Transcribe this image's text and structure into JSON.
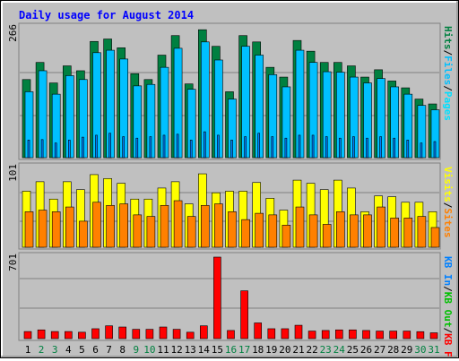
{
  "title": "Daily usage for August 2014",
  "colors": {
    "title": "#0000ff",
    "hits": "#008040",
    "files": "#00c0ff",
    "pages": "#00e0ff",
    "sites": "#ff8000",
    "visits": "#ffff00",
    "kb_in": "#0080ff",
    "kb_out": "#00c000",
    "kb_f": "#ff0000",
    "weekend": "#008040",
    "weekday": "#000000"
  },
  "chart_data": [
    {
      "type": "bar",
      "name": "Hits/Files/Pages",
      "legend": [
        "Hits",
        "/",
        "Files",
        "/",
        "Pages"
      ],
      "ymax_label": "266",
      "ymax": 266,
      "categories": [
        "1",
        "2",
        "3",
        "4",
        "5",
        "6",
        "7",
        "8",
        "9",
        "10",
        "11",
        "12",
        "13",
        "14",
        "15",
        "16",
        "17",
        "18",
        "19",
        "20",
        "21",
        "22",
        "23",
        "24",
        "25",
        "26",
        "27",
        "28",
        "29",
        "30",
        "31"
      ],
      "series": [
        {
          "name": "Hits",
          "values": [
            160,
            195,
            153,
            188,
            178,
            238,
            243,
            225,
            172,
            160,
            210,
            250,
            151,
            262,
            228,
            135,
            250,
            237,
            185,
            165,
            240,
            218,
            195,
            195,
            188,
            165,
            180,
            157,
            143,
            120,
            110
          ]
        },
        {
          "name": "Files",
          "values": [
            135,
            178,
            130,
            168,
            160,
            215,
            220,
            202,
            147,
            150,
            185,
            224,
            140,
            237,
            200,
            120,
            228,
            210,
            170,
            145,
            220,
            195,
            176,
            175,
            165,
            153,
            162,
            145,
            130,
            107,
            98
          ]
        },
        {
          "name": "Pages",
          "values": [
            36,
            37,
            30,
            36,
            42,
            46,
            50,
            43,
            40,
            43,
            46,
            48,
            36,
            53,
            46,
            36,
            43,
            50,
            43,
            40,
            46,
            46,
            43,
            40,
            43,
            40,
            43,
            40,
            36,
            30,
            33
          ]
        }
      ]
    },
    {
      "type": "bar",
      "name": "Visits/Sites",
      "legend": [
        "Visits",
        "/",
        "Sites"
      ],
      "ymax_label": "101",
      "ymax": 101,
      "categories": [
        "1",
        "2",
        "3",
        "4",
        "5",
        "6",
        "7",
        "8",
        "9",
        "10",
        "11",
        "12",
        "13",
        "14",
        "15",
        "16",
        "17",
        "18",
        "19",
        "20",
        "21",
        "22",
        "23",
        "24",
        "25",
        "26",
        "27",
        "28",
        "29",
        "30",
        "31"
      ],
      "series": [
        {
          "name": "Visits",
          "values": [
            71,
            83,
            61,
            83,
            73,
            92,
            87,
            81,
            61,
            61,
            75,
            83,
            55,
            93,
            69,
            71,
            71,
            82,
            62,
            47,
            85,
            81,
            73,
            85,
            75,
            45,
            65,
            64,
            57,
            57,
            45
          ]
        },
        {
          "name": "Sites",
          "values": [
            45,
            47,
            45,
            51,
            33,
            57,
            53,
            55,
            41,
            39,
            53,
            59,
            39,
            53,
            55,
            45,
            35,
            43,
            41,
            28,
            51,
            41,
            29,
            45,
            41,
            41,
            51,
            37,
            37,
            39,
            25
          ]
        }
      ]
    },
    {
      "type": "bar",
      "name": "KB F/KB Out/KB In",
      "legend": [
        "KB F",
        "/",
        "KB Out",
        "/",
        "KB In"
      ],
      "ymax_label": "701",
      "ymax": 701,
      "categories": [
        "1",
        "2",
        "3",
        "4",
        "5",
        "6",
        "7",
        "8",
        "9",
        "10",
        "11",
        "12",
        "13",
        "14",
        "15",
        "16",
        "17",
        "18",
        "19",
        "20",
        "21",
        "22",
        "23",
        "24",
        "25",
        "26",
        "27",
        "28",
        "29",
        "30",
        "31"
      ],
      "series": [
        {
          "name": "KB F",
          "values": [
            61,
            75,
            61,
            61,
            55,
            85,
            110,
            100,
            80,
            80,
            100,
            80,
            55,
            110,
            701,
            70,
            411,
            135,
            85,
            85,
            115,
            65,
            70,
            75,
            75,
            70,
            65,
            65,
            65,
            60,
            50
          ]
        }
      ]
    }
  ],
  "days": [
    "1",
    "2",
    "3",
    "4",
    "5",
    "6",
    "7",
    "8",
    "9",
    "10",
    "11",
    "12",
    "13",
    "14",
    "15",
    "16",
    "17",
    "18",
    "19",
    "20",
    "21",
    "22",
    "23",
    "24",
    "25",
    "26",
    "27",
    "28",
    "29",
    "30",
    "31"
  ],
  "weekend_days": [
    "2",
    "3",
    "9",
    "10",
    "16",
    "17",
    "23",
    "24",
    "30",
    "31"
  ]
}
